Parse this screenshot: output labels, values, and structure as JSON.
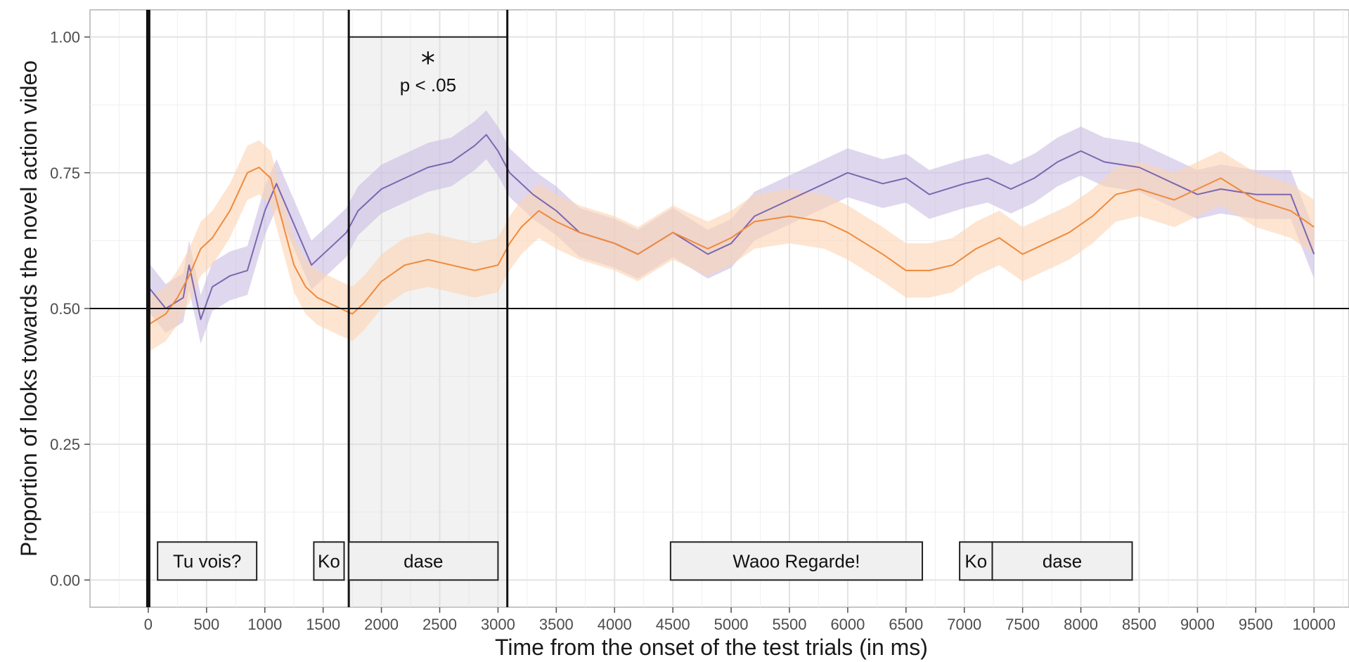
{
  "chart_data": {
    "type": "line",
    "xlabel": "Time from the onset of the test trials (in ms)",
    "ylabel": "Proportion of looks towards the novel action video",
    "xlim": [
      -500,
      10300
    ],
    "ylim": [
      -0.05,
      1.05
    ],
    "x_ticks": [
      0,
      500,
      1000,
      1500,
      2000,
      2500,
      3000,
      3500,
      4000,
      4500,
      5000,
      5500,
      6000,
      6500,
      7000,
      7500,
      8000,
      8500,
      9000,
      9500,
      10000
    ],
    "x_tick_labels": [
      "0",
      "500",
      "1000",
      "1500",
      "2000",
      "2500",
      "3000",
      "3500",
      "4000",
      "4500",
      "5000",
      "5500",
      "6000",
      "6500",
      "7000",
      "7500",
      "8000",
      "8500",
      "9000",
      "9500",
      "10000"
    ],
    "y_ticks": [
      0,
      0.25,
      0.5,
      0.75,
      1.0
    ],
    "y_tick_labels": [
      "0.00",
      "0.25",
      "0.50",
      "0.75",
      "1.00"
    ],
    "grid": true,
    "chance_line": 0.5,
    "vertical_lines": [
      0,
      1720,
      3080
    ],
    "significant_window": {
      "start": 1720,
      "end": 3080,
      "star": "*",
      "label": "p < .05"
    },
    "word_boxes": [
      {
        "label": "Tu vois?",
        "start": 80,
        "end": 930
      },
      {
        "label": "Ko",
        "start": 1420,
        "end": 1680
      },
      {
        "label": "dase",
        "start": 1720,
        "end": 3000
      },
      {
        "label": "Waoo Regarde!",
        "start": 4480,
        "end": 6640
      },
      {
        "label": "Ko",
        "start": 6960,
        "end": 7240
      },
      {
        "label": "dase",
        "start": 7240,
        "end": 8440
      }
    ],
    "series": [
      {
        "color": "#7b67b0",
        "ribbon_color": "#c9bde3",
        "x": [
          0,
          150,
          300,
          350,
          450,
          550,
          700,
          850,
          1000,
          1100,
          1200,
          1300,
          1400,
          1500,
          1600,
          1700,
          1800,
          2000,
          2200,
          2400,
          2600,
          2800,
          2900,
          3000,
          3100,
          3300,
          3500,
          3700,
          4000,
          4200,
          4500,
          4800,
          5000,
          5200,
          5500,
          5800,
          6000,
          6300,
          6500,
          6700,
          7000,
          7200,
          7400,
          7600,
          7800,
          8000,
          8200,
          8500,
          8800,
          9000,
          9200,
          9500,
          9800,
          10000
        ],
        "values": [
          0.54,
          0.5,
          0.52,
          0.58,
          0.48,
          0.54,
          0.56,
          0.57,
          0.68,
          0.73,
          0.68,
          0.63,
          0.58,
          0.6,
          0.62,
          0.64,
          0.68,
          0.72,
          0.74,
          0.76,
          0.77,
          0.8,
          0.82,
          0.79,
          0.75,
          0.71,
          0.68,
          0.64,
          0.62,
          0.6,
          0.64,
          0.6,
          0.62,
          0.67,
          0.7,
          0.73,
          0.75,
          0.73,
          0.74,
          0.71,
          0.73,
          0.74,
          0.72,
          0.74,
          0.77,
          0.79,
          0.77,
          0.76,
          0.73,
          0.71,
          0.72,
          0.71,
          0.71,
          0.6
        ],
        "ribbon_half_width": 0.045
      },
      {
        "color": "#f08a3c",
        "ribbon_color": "#fbd3b3",
        "x": [
          0,
          150,
          250,
          350,
          450,
          550,
          700,
          850,
          950,
          1050,
          1150,
          1250,
          1350,
          1450,
          1550,
          1650,
          1750,
          1850,
          2000,
          2200,
          2400,
          2600,
          2800,
          3000,
          3100,
          3200,
          3350,
          3500,
          3700,
          4000,
          4200,
          4500,
          4800,
          5000,
          5200,
          5500,
          5800,
          6000,
          6300,
          6500,
          6700,
          6900,
          7100,
          7300,
          7500,
          7700,
          7900,
          8100,
          8300,
          8500,
          8800,
          9000,
          9200,
          9500,
          9800,
          10000
        ],
        "values": [
          0.47,
          0.49,
          0.52,
          0.56,
          0.61,
          0.63,
          0.68,
          0.75,
          0.76,
          0.74,
          0.66,
          0.58,
          0.54,
          0.52,
          0.51,
          0.5,
          0.49,
          0.51,
          0.55,
          0.58,
          0.59,
          0.58,
          0.57,
          0.58,
          0.62,
          0.65,
          0.68,
          0.66,
          0.64,
          0.62,
          0.6,
          0.64,
          0.61,
          0.63,
          0.66,
          0.67,
          0.66,
          0.64,
          0.6,
          0.57,
          0.57,
          0.58,
          0.61,
          0.63,
          0.6,
          0.62,
          0.64,
          0.67,
          0.71,
          0.72,
          0.7,
          0.72,
          0.74,
          0.7,
          0.68,
          0.65
        ],
        "ribbon_half_width": 0.05
      }
    ]
  }
}
